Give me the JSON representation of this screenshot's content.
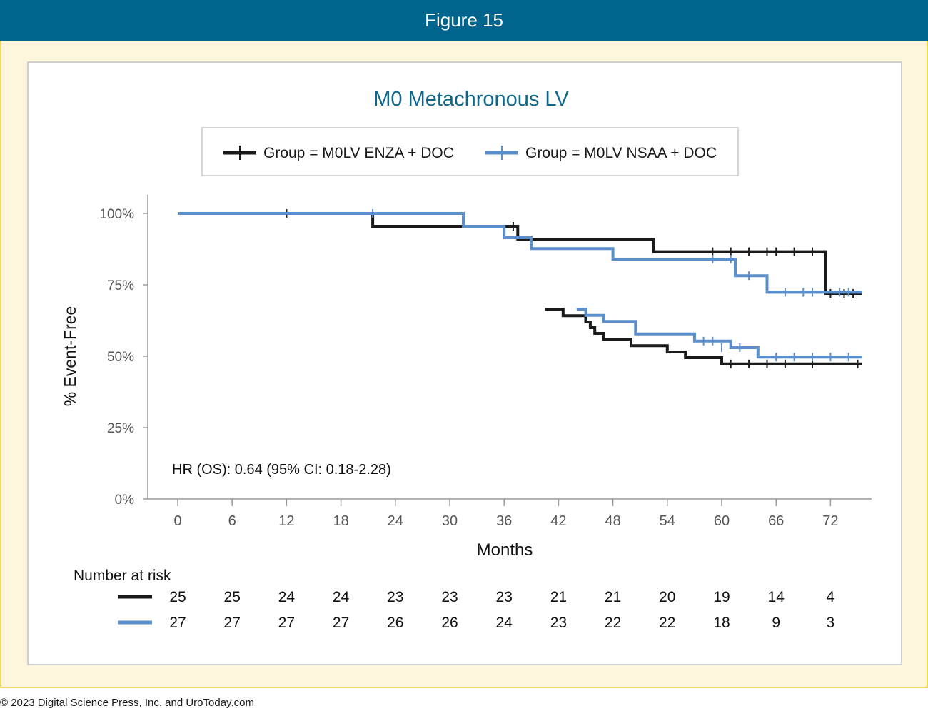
{
  "header": {
    "title": "Figure 15"
  },
  "footer": {
    "copyright": "© 2023 Digital Science Press, Inc. and UroToday.com"
  },
  "colors": {
    "header_bg": "#00648c",
    "frame_border": "#f3d95a",
    "frame_bg": "#fdf6dd",
    "enza": "#1a1a1a",
    "nsaa": "#5b8fcc",
    "title": "#0e6688"
  },
  "chart_data": {
    "type": "line",
    "subtype": "kaplan-meier",
    "title": "M0 Metachronous LV",
    "xlabel": "Months",
    "ylabel": "% Event-Free",
    "xlim": [
      0,
      78
    ],
    "ylim": [
      0,
      1
    ],
    "xticks": [
      "0",
      "6",
      "12",
      "18",
      "24",
      "30",
      "36",
      "42",
      "48",
      "54",
      "60",
      "66",
      "72"
    ],
    "yticks": [
      "0%",
      "25%",
      "50%",
      "75%",
      "100%"
    ],
    "legend_position": "top",
    "annotation": "HR (OS): 0.64 (95% CI: 0.18-2.28)",
    "series": [
      {
        "name": "Group = M0LV ENZA + DOC",
        "color": "#1a1a1a",
        "curves": [
          [
            [
              0,
              1.0
            ],
            [
              21.5,
              1.0
            ],
            [
              21.5,
              0.955
            ],
            [
              37.5,
              0.955
            ],
            [
              37.5,
              0.91
            ],
            [
              52.5,
              0.91
            ],
            [
              52.5,
              0.866
            ],
            [
              71.5,
              0.866
            ],
            [
              71.5,
              0.72
            ],
            [
              75.5,
              0.72
            ]
          ],
          [
            [
              40.5,
              0.665
            ],
            [
              42.5,
              0.665
            ],
            [
              42.5,
              0.642
            ],
            [
              45,
              0.642
            ],
            [
              45,
              0.62
            ],
            [
              45.5,
              0.62
            ],
            [
              45.5,
              0.6
            ],
            [
              46,
              0.6
            ],
            [
              46,
              0.58
            ],
            [
              47,
              0.58
            ],
            [
              47,
              0.56
            ],
            [
              50,
              0.56
            ],
            [
              50,
              0.537
            ],
            [
              54,
              0.537
            ],
            [
              54,
              0.515
            ],
            [
              56,
              0.515
            ],
            [
              56,
              0.495
            ],
            [
              60,
              0.495
            ],
            [
              60,
              0.473
            ],
            [
              75.5,
              0.473
            ]
          ]
        ],
        "censor_marks": [
          [
            12,
            1.0
          ],
          [
            37,
            0.955
          ],
          [
            59,
            0.866
          ],
          [
            61,
            0.866
          ],
          [
            63,
            0.866
          ],
          [
            65,
            0.866
          ],
          [
            66,
            0.866
          ],
          [
            68,
            0.866
          ],
          [
            70,
            0.866
          ],
          [
            72,
            0.72
          ],
          [
            73.5,
            0.72
          ],
          [
            74.5,
            0.72
          ],
          [
            61,
            0.473
          ],
          [
            63,
            0.473
          ],
          [
            65,
            0.473
          ],
          [
            67,
            0.473
          ],
          [
            70,
            0.473
          ],
          [
            75,
            0.473
          ]
        ],
        "at_risk": [
          25,
          25,
          24,
          24,
          23,
          23,
          23,
          21,
          21,
          20,
          19,
          14,
          4
        ]
      },
      {
        "name": "Group = M0LV NSAA + DOC",
        "color": "#5b8fcc",
        "curves": [
          [
            [
              0,
              1.0
            ],
            [
              31.5,
              1.0
            ],
            [
              31.5,
              0.955
            ],
            [
              36,
              0.955
            ],
            [
              36,
              0.915
            ],
            [
              39,
              0.915
            ],
            [
              39,
              0.877
            ],
            [
              48,
              0.877
            ],
            [
              48,
              0.84
            ],
            [
              61.5,
              0.84
            ],
            [
              61.5,
              0.782
            ],
            [
              65,
              0.782
            ],
            [
              65,
              0.724
            ],
            [
              75.5,
              0.724
            ]
          ],
          [
            [
              44,
              0.665
            ],
            [
              45,
              0.665
            ],
            [
              45,
              0.643
            ],
            [
              47,
              0.643
            ],
            [
              47,
              0.622
            ],
            [
              50.5,
              0.622
            ],
            [
              50.5,
              0.578
            ],
            [
              57,
              0.578
            ],
            [
              57,
              0.553
            ],
            [
              61,
              0.553
            ],
            [
              61,
              0.53
            ],
            [
              64,
              0.53
            ],
            [
              64,
              0.497
            ],
            [
              75.5,
              0.497
            ]
          ]
        ],
        "censor_marks": [
          [
            21.5,
            1.0
          ],
          [
            59,
            0.84
          ],
          [
            61,
            0.84
          ],
          [
            63,
            0.782
          ],
          [
            67,
            0.724
          ],
          [
            69,
            0.724
          ],
          [
            70,
            0.724
          ],
          [
            73,
            0.724
          ],
          [
            74,
            0.724
          ],
          [
            58,
            0.553
          ],
          [
            59,
            0.553
          ],
          [
            60,
            0.53
          ],
          [
            62,
            0.53
          ],
          [
            66,
            0.497
          ],
          [
            68,
            0.497
          ],
          [
            70,
            0.497
          ],
          [
            72,
            0.497
          ],
          [
            74,
            0.497
          ]
        ],
        "at_risk": [
          27,
          27,
          27,
          27,
          26,
          26,
          24,
          23,
          22,
          22,
          18,
          9,
          3
        ]
      }
    ],
    "at_risk_label": "Number at risk"
  }
}
